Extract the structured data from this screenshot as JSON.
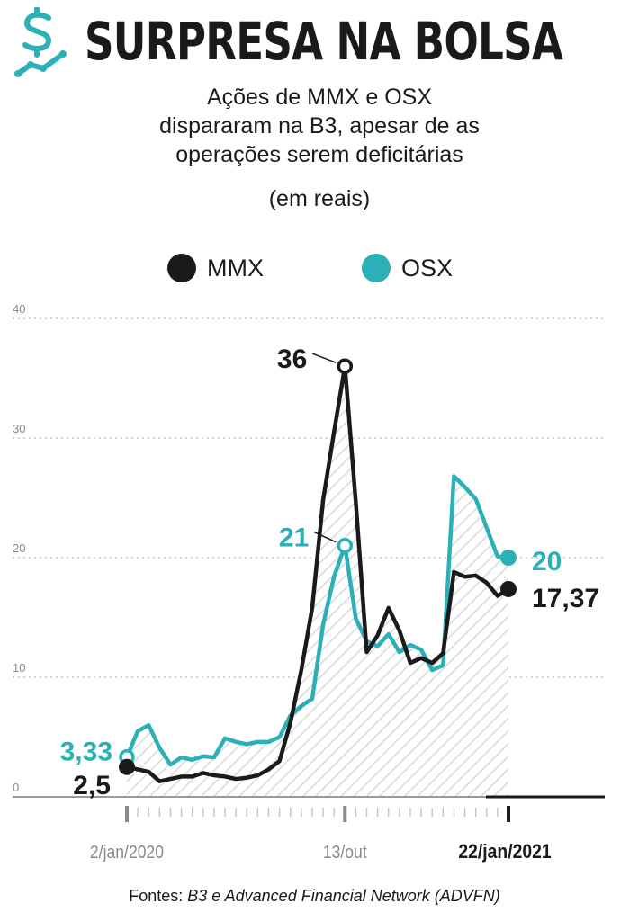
{
  "header": {
    "title": "SURPRESA NA BOLSA",
    "subtitle_lines": [
      "Ações de MMX e OSX",
      "dispararam na B3, apesar de as",
      "operações serem deficitárias"
    ],
    "unit": "(em reais)"
  },
  "legend": {
    "mmx": "MMX",
    "osx": "OSX"
  },
  "source": {
    "prefix": "Fontes: ",
    "text": "B3 e Advanced Financial Network (ADVFN)"
  },
  "colors": {
    "mmx": "#1a1a1a",
    "osx": "#2bb0b8",
    "grid": "#b8b8b8",
    "text": "#1a1a1a"
  },
  "chart_data": {
    "type": "line",
    "title": "SURPRESA NA BOLSA",
    "subtitle": "Ações de MMX e OSX dispararam na B3, apesar de as operações serem deficitárias",
    "ylabel": "(em reais)",
    "xlabel": "",
    "ylim": [
      0,
      40
    ],
    "yticks": [
      0,
      10,
      20,
      30,
      40
    ],
    "grid": true,
    "legend_position": "top-center",
    "x_tick_labels": [
      {
        "label": "2/jan/2020",
        "index": 0
      },
      {
        "label": "13/out",
        "index": 20
      },
      {
        "label": "22/jan/2021",
        "index": 35
      }
    ],
    "series": [
      {
        "name": "MMX",
        "values": [
          2.5,
          2.3,
          2.1,
          1.3,
          1.5,
          1.7,
          1.7,
          2.0,
          1.8,
          1.7,
          1.5,
          1.6,
          1.8,
          2.3,
          3.0,
          6.2,
          10.6,
          15.8,
          24.8,
          30.5,
          36.0,
          24.6,
          12.1,
          13.5,
          15.8,
          13.9,
          11.2,
          11.6,
          11.2,
          12.0,
          18.8,
          18.4,
          18.5,
          17.9,
          16.8,
          17.37
        ],
        "callouts": [
          {
            "index": 0,
            "text": "2,5"
          },
          {
            "index": 20,
            "text": "36"
          },
          {
            "index": 35,
            "text": "17,37"
          }
        ]
      },
      {
        "name": "OSX",
        "values": [
          3.33,
          5.5,
          6.0,
          4.1,
          2.7,
          3.3,
          3.1,
          3.4,
          3.3,
          4.9,
          4.6,
          4.4,
          4.6,
          4.6,
          5.0,
          6.8,
          7.6,
          8.2,
          14.4,
          18.4,
          21.0,
          14.9,
          13.0,
          12.6,
          13.6,
          12.1,
          12.7,
          12.3,
          10.6,
          11.0,
          26.8,
          25.9,
          24.9,
          22.5,
          20.1,
          20.0
        ],
        "callouts": [
          {
            "index": 0,
            "text": "3,33"
          },
          {
            "index": 20,
            "text": "21"
          },
          {
            "index": 35,
            "text": "20"
          }
        ]
      }
    ]
  }
}
